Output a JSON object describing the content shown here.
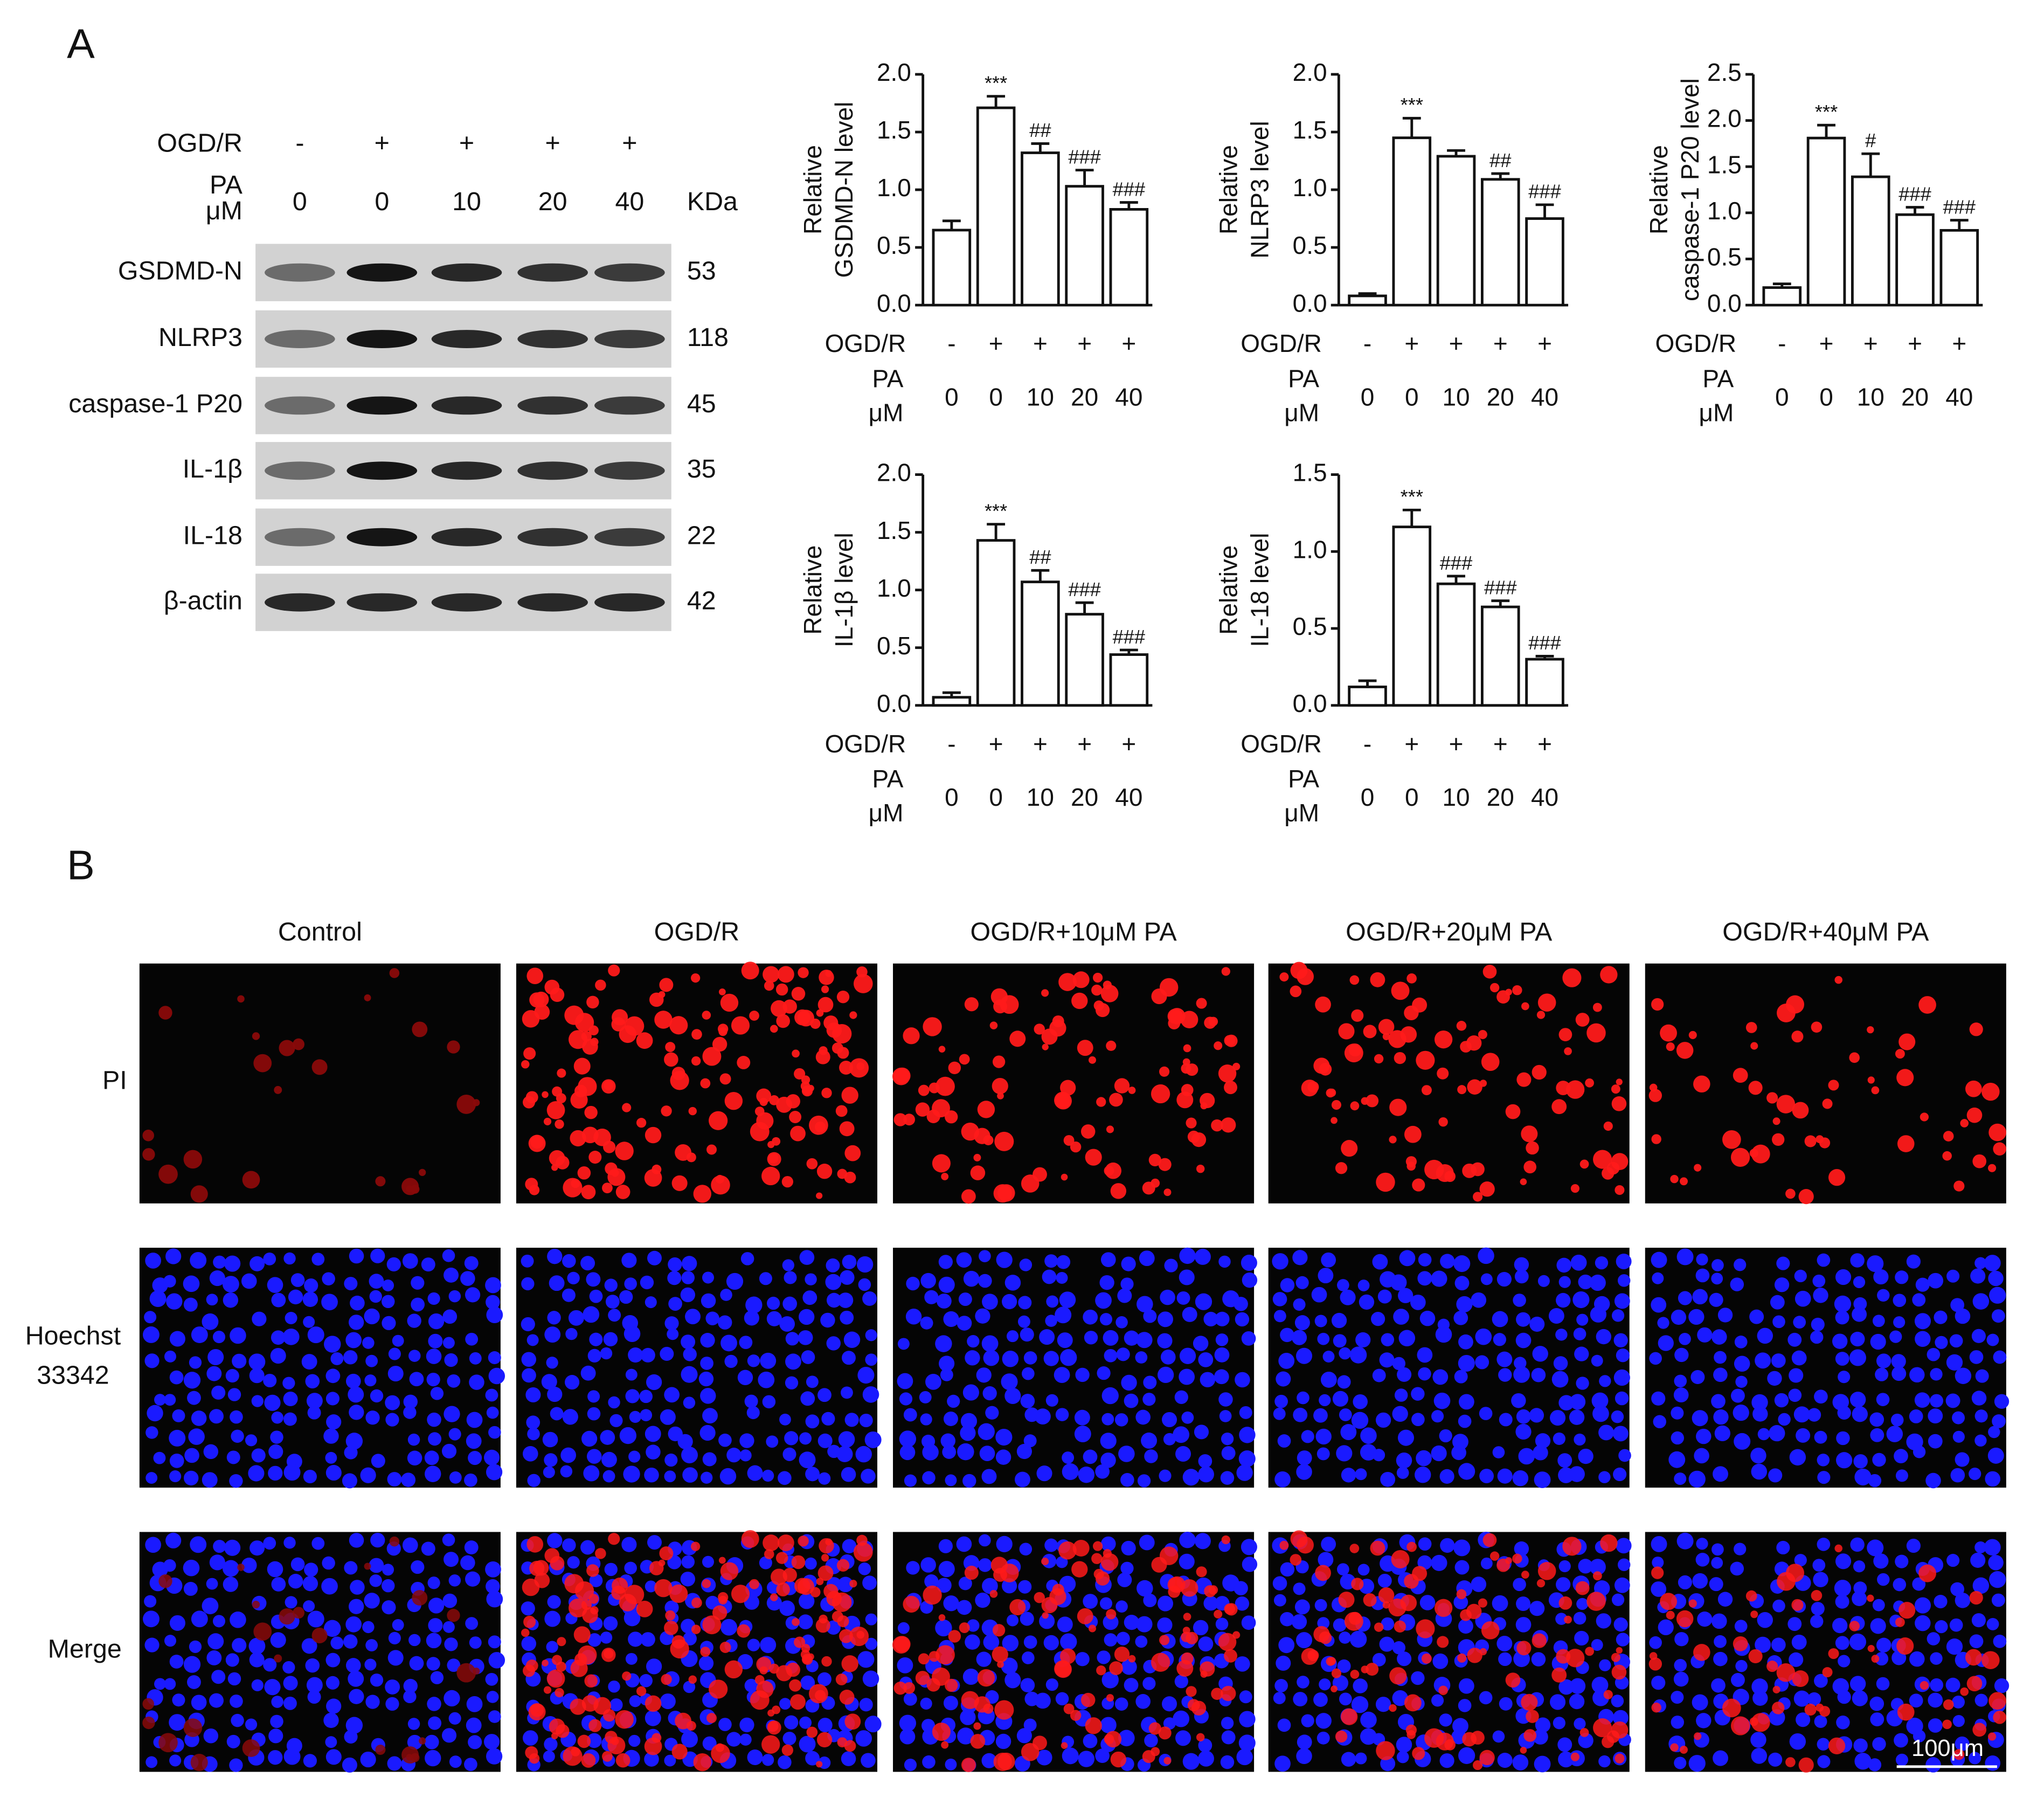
{
  "panel_labels": [
    "A",
    "B"
  ],
  "western_blot": {
    "conditions": [
      {
        "label": "OGD/R",
        "values": [
          "-",
          "+",
          "+",
          "+",
          "+"
        ]
      },
      {
        "label": [
          "PA",
          "μM"
        ],
        "values": [
          "0",
          "0",
          "10",
          "20",
          "40"
        ]
      }
    ],
    "unit_header": "KDa",
    "bands": [
      {
        "protein": "GSDMD-N",
        "kda": "53"
      },
      {
        "protein": "NLRP3",
        "kda": "118"
      },
      {
        "protein": "caspase-1 P20",
        "kda": "45"
      },
      {
        "protein": "IL-1β",
        "kda": "35"
      },
      {
        "protein": "IL-18",
        "kda": "22"
      },
      {
        "protein": "β-actin",
        "kda": "42"
      }
    ]
  },
  "chart_data": [
    {
      "type": "bar",
      "ylabel": [
        "Relative",
        "GSDMD-N level"
      ],
      "categories_label": "OGD/R",
      "categories": [
        "-",
        "+",
        "+",
        "+",
        "+"
      ],
      "subcategories_label": [
        "PA",
        "μM"
      ],
      "subcategories": [
        "0",
        "0",
        "10",
        "20",
        "40"
      ],
      "values": [
        0.65,
        1.71,
        1.32,
        1.03,
        0.83
      ],
      "errors": [
        0.08,
        0.1,
        0.08,
        0.14,
        0.06
      ],
      "annotations": [
        null,
        "***",
        "##",
        "###",
        "###"
      ],
      "color": "#ffffff",
      "ylim": [
        0,
        2
      ],
      "yticks": [
        {
          "value": 0,
          "label": "0.0"
        },
        0.5,
        {
          "value": 1,
          "label": "1.0"
        },
        1.5,
        {
          "value": 2,
          "label": "2.0"
        }
      ]
    },
    {
      "type": "bar",
      "ylabel": [
        "Relative",
        "NLRP3 level"
      ],
      "categories_label": "OGD/R",
      "categories": [
        "-",
        "+",
        "+",
        "+",
        "+"
      ],
      "subcategories_label": [
        "PA",
        "μM"
      ],
      "subcategories": [
        "0",
        "0",
        "10",
        "20",
        "40"
      ],
      "values": [
        0.08,
        1.45,
        1.29,
        1.09,
        0.75
      ],
      "errors": [
        0.02,
        0.17,
        0.05,
        0.05,
        0.12
      ],
      "annotations": [
        null,
        "***",
        null,
        "##",
        "###"
      ],
      "color": "#ffffff",
      "ylim": [
        0,
        2
      ],
      "yticks": [
        {
          "value": 0,
          "label": "0.0"
        },
        0.5,
        {
          "value": 1,
          "label": "1.0"
        },
        1.5,
        {
          "value": 2,
          "label": "2.0"
        }
      ]
    },
    {
      "type": "bar",
      "ylabel": [
        "Relative",
        "caspase-1 P20 level"
      ],
      "categories_label": "OGD/R",
      "categories": [
        "-",
        "+",
        "+",
        "+",
        "+"
      ],
      "subcategories_label": [
        "PA",
        "μM"
      ],
      "subcategories": [
        "0",
        "0",
        "10",
        "20",
        "40"
      ],
      "values": [
        0.19,
        1.81,
        1.39,
        0.98,
        0.81
      ],
      "errors": [
        0.04,
        0.14,
        0.25,
        0.08,
        0.11
      ],
      "annotations": [
        null,
        "***",
        "#",
        "###",
        "###"
      ],
      "color": "#ffffff",
      "ylim": [
        0,
        2.5
      ],
      "yticks": [
        {
          "value": 0,
          "label": "0.0"
        },
        0.5,
        {
          "value": 1,
          "label": "1.0"
        },
        1.5,
        {
          "value": 2,
          "label": "2.0"
        },
        2.5
      ]
    },
    {
      "type": "bar",
      "ylabel": [
        "Relative",
        "IL-1β level"
      ],
      "categories_label": "OGD/R",
      "categories": [
        "-",
        "+",
        "+",
        "+",
        "+"
      ],
      "subcategories_label": [
        "PA",
        "μM"
      ],
      "subcategories": [
        "0",
        "0",
        "10",
        "20",
        "40"
      ],
      "values": [
        0.07,
        1.43,
        1.07,
        0.79,
        0.44
      ],
      "errors": [
        0.04,
        0.14,
        0.1,
        0.1,
        0.04
      ],
      "annotations": [
        null,
        "***",
        "##",
        "###",
        "###"
      ],
      "color": "#ffffff",
      "ylim": [
        0,
        2
      ],
      "yticks": [
        {
          "value": 0,
          "label": "0.0"
        },
        0.5,
        {
          "value": 1,
          "label": "1.0"
        },
        1.5,
        {
          "value": 2,
          "label": "2.0"
        }
      ]
    },
    {
      "type": "bar",
      "ylabel": [
        "Relative",
        "IL-18 level"
      ],
      "categories_label": "OGD/R",
      "categories": [
        "-",
        "+",
        "+",
        "+",
        "+"
      ],
      "subcategories_label": [
        "PA",
        "μM"
      ],
      "subcategories": [
        "0",
        "0",
        "10",
        "20",
        "40"
      ],
      "values": [
        0.12,
        1.16,
        0.79,
        0.64,
        0.3
      ],
      "errors": [
        0.04,
        0.11,
        0.05,
        0.04,
        0.02
      ],
      "annotations": [
        null,
        "***",
        "###",
        "###",
        "###"
      ],
      "color": "#ffffff",
      "ylim": [
        0,
        1.5
      ],
      "yticks": [
        {
          "value": 0,
          "label": "0.0"
        },
        0.5,
        {
          "value": 1,
          "label": "1.0"
        },
        1.5
      ]
    }
  ],
  "microscopy": {
    "columns": [
      "Control",
      "OGD/R",
      "OGD/R+10μM PA",
      "OGD/R+20μM PA",
      "OGD/R+40μM PA"
    ],
    "rows": [
      [
        "PI"
      ],
      [
        "Hoechst",
        "33342"
      ],
      [
        "Merge"
      ]
    ],
    "scale_bar": "100μm"
  }
}
